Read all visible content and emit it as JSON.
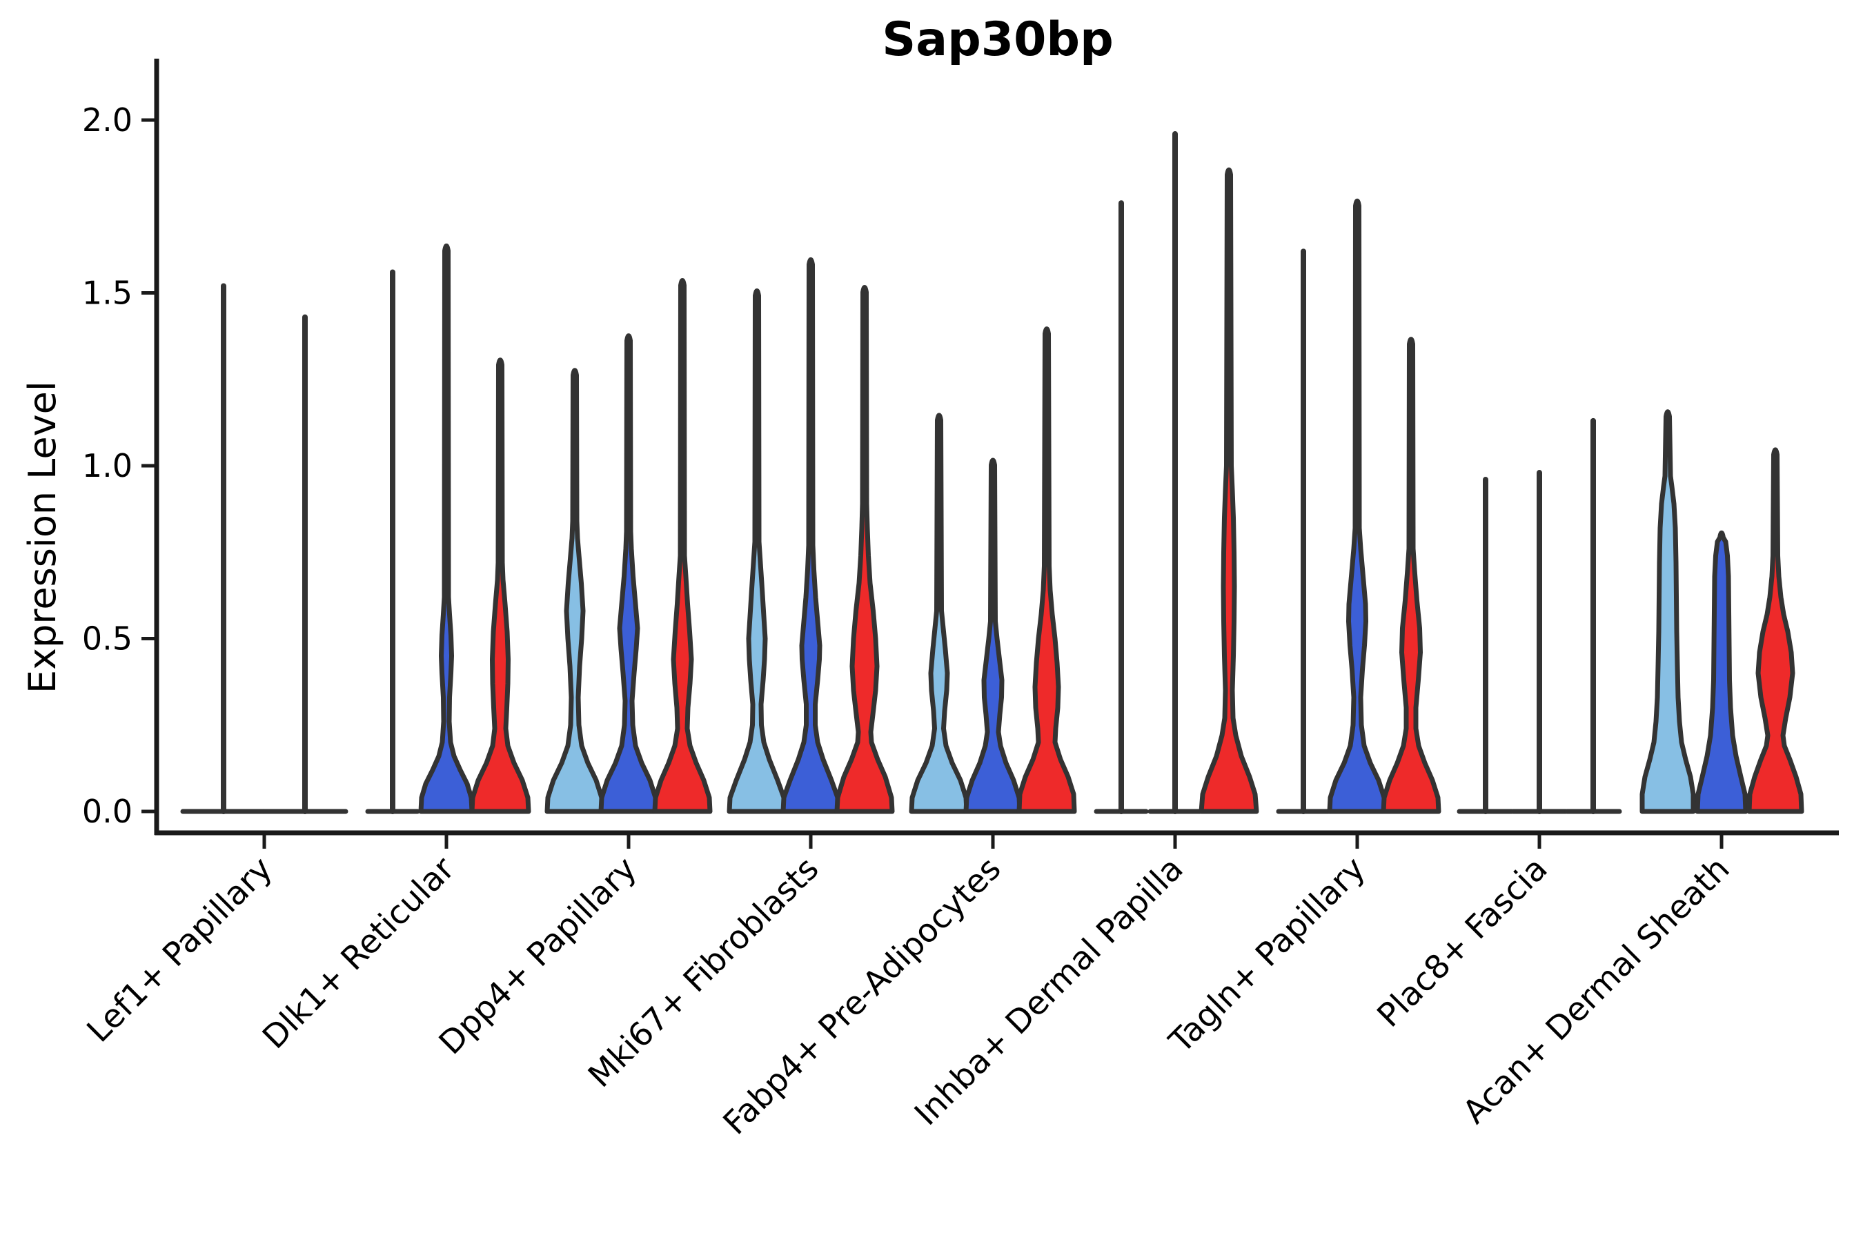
{
  "chart_data": {
    "type": "violin",
    "title": "Sap30bp",
    "ylabel": "Expression Level",
    "xlabel": "",
    "ylim": [
      0,
      2.05
    ],
    "yticks": [
      "0.0",
      "0.5",
      "1.0",
      "1.5",
      "2.0"
    ],
    "ytick_values": [
      0,
      0.5,
      1.0,
      1.5,
      2.0
    ],
    "grid": false,
    "legend": "none",
    "categories": [
      "Lef1+ Papillary",
      "Dlk1+ Reticular",
      "Dpp4+ Papillary",
      "Mki67+ Fibroblasts",
      "Fabp4+ Pre-Adipocytes",
      "Inhba+ Dermal Papilla",
      "Tagln+ Papillary",
      "Plac8+ Fascia",
      "Acan+ Dermal Sheath"
    ],
    "colors": {
      "skyblue": "#87BFE4",
      "blue": "#3C5FD7",
      "red": "#EE2A2A",
      "outline": "#333333"
    },
    "violins": [
      {
        "cat": 0,
        "dx": -59,
        "flat": true,
        "hw": 59,
        "max": 1.52
      },
      {
        "cat": 0,
        "dx": 59,
        "flat": true,
        "hw": 59,
        "max": 1.43
      },
      {
        "cat": 1,
        "dx": -78,
        "flat": true,
        "hw": 36,
        "max": 1.56
      },
      {
        "cat": 1,
        "dx": 0,
        "color": "blue",
        "max": 1.64,
        "profile": [
          [
            0,
            37
          ],
          [
            0.04,
            36
          ],
          [
            0.08,
            30
          ],
          [
            0.12,
            20
          ],
          [
            0.16,
            11
          ],
          [
            0.2,
            6
          ],
          [
            0.26,
            4
          ],
          [
            0.33,
            4.5
          ],
          [
            0.4,
            6.5
          ],
          [
            0.45,
            7.5
          ],
          [
            0.51,
            6.5
          ],
          [
            0.57,
            4.5
          ],
          [
            0.62,
            3
          ]
        ]
      },
      {
        "cat": 1,
        "dx": 78,
        "color": "red",
        "max": 1.31,
        "profile": [
          [
            0,
            41
          ],
          [
            0.04,
            40
          ],
          [
            0.09,
            32
          ],
          [
            0.14,
            20
          ],
          [
            0.19,
            11
          ],
          [
            0.24,
            8
          ],
          [
            0.3,
            9.5
          ],
          [
            0.37,
            11
          ],
          [
            0.44,
            11.5
          ],
          [
            0.52,
            10
          ],
          [
            0.6,
            7
          ],
          [
            0.67,
            4
          ],
          [
            0.72,
            3
          ]
        ]
      },
      {
        "cat": 2,
        "dx": -78,
        "color": "skyblue",
        "max": 1.28,
        "profile": [
          [
            0,
            40
          ],
          [
            0.04,
            39
          ],
          [
            0.09,
            31
          ],
          [
            0.14,
            19
          ],
          [
            0.19,
            10
          ],
          [
            0.25,
            6
          ],
          [
            0.33,
            5
          ],
          [
            0.42,
            7
          ],
          [
            0.5,
            10
          ],
          [
            0.58,
            12
          ],
          [
            0.66,
            9.5
          ],
          [
            0.73,
            6.5
          ],
          [
            0.79,
            4
          ],
          [
            0.84,
            3
          ]
        ]
      },
      {
        "cat": 2,
        "dx": 0,
        "color": "blue",
        "max": 1.38,
        "profile": [
          [
            0,
            40
          ],
          [
            0.04,
            39
          ],
          [
            0.09,
            31
          ],
          [
            0.14,
            19
          ],
          [
            0.19,
            10
          ],
          [
            0.25,
            6
          ],
          [
            0.32,
            5
          ],
          [
            0.4,
            8
          ],
          [
            0.47,
            11
          ],
          [
            0.53,
            13
          ],
          [
            0.6,
            10
          ],
          [
            0.68,
            6.5
          ],
          [
            0.76,
            4
          ],
          [
            0.81,
            3
          ]
        ]
      },
      {
        "cat": 2,
        "dx": 78,
        "color": "red",
        "max": 1.54,
        "profile": [
          [
            0,
            40
          ],
          [
            0.04,
            39
          ],
          [
            0.09,
            31
          ],
          [
            0.14,
            20
          ],
          [
            0.19,
            11
          ],
          [
            0.24,
            7
          ],
          [
            0.3,
            8
          ],
          [
            0.37,
            11
          ],
          [
            0.44,
            13
          ],
          [
            0.52,
            10.5
          ],
          [
            0.6,
            7.5
          ],
          [
            0.68,
            5
          ],
          [
            0.74,
            3
          ]
        ]
      },
      {
        "cat": 3,
        "dx": -78,
        "color": "skyblue",
        "max": 1.51,
        "profile": [
          [
            0,
            40
          ],
          [
            0.04,
            39
          ],
          [
            0.09,
            30
          ],
          [
            0.15,
            18
          ],
          [
            0.2,
            10
          ],
          [
            0.25,
            6.5
          ],
          [
            0.31,
            6
          ],
          [
            0.38,
            9
          ],
          [
            0.44,
            11
          ],
          [
            0.5,
            12
          ],
          [
            0.58,
            9.5
          ],
          [
            0.66,
            7
          ],
          [
            0.72,
            5
          ],
          [
            0.78,
            3
          ]
        ]
      },
      {
        "cat": 3,
        "dx": 0,
        "color": "blue",
        "max": 1.6,
        "profile": [
          [
            0,
            40
          ],
          [
            0.04,
            39
          ],
          [
            0.09,
            30
          ],
          [
            0.15,
            18
          ],
          [
            0.2,
            10
          ],
          [
            0.25,
            6.5
          ],
          [
            0.31,
            6.5
          ],
          [
            0.38,
            10
          ],
          [
            0.44,
            12.5
          ],
          [
            0.48,
            13
          ],
          [
            0.55,
            10
          ],
          [
            0.62,
            7
          ],
          [
            0.7,
            4.5
          ],
          [
            0.77,
            3
          ]
        ]
      },
      {
        "cat": 3,
        "dx": 78,
        "color": "red",
        "max": 1.52,
        "profile": [
          [
            0,
            40
          ],
          [
            0.04,
            39
          ],
          [
            0.1,
            30
          ],
          [
            0.15,
            19
          ],
          [
            0.2,
            10
          ],
          [
            0.23,
            9
          ],
          [
            0.28,
            12
          ],
          [
            0.35,
            16
          ],
          [
            0.42,
            18
          ],
          [
            0.5,
            16
          ],
          [
            0.58,
            12.5
          ],
          [
            0.66,
            8
          ],
          [
            0.74,
            5.5
          ],
          [
            0.82,
            4
          ],
          [
            0.89,
            3
          ]
        ]
      },
      {
        "cat": 4,
        "dx": -78,
        "color": "skyblue",
        "max": 1.15,
        "profile": [
          [
            0,
            40
          ],
          [
            0.04,
            39
          ],
          [
            0.09,
            31
          ],
          [
            0.14,
            19
          ],
          [
            0.19,
            10
          ],
          [
            0.24,
            6.5
          ],
          [
            0.29,
            8
          ],
          [
            0.35,
            11
          ],
          [
            0.4,
            12
          ],
          [
            0.47,
            9
          ],
          [
            0.53,
            6
          ],
          [
            0.58,
            3.5
          ]
        ]
      },
      {
        "cat": 4,
        "dx": 0,
        "color": "blue",
        "max": 1.02,
        "profile": [
          [
            0,
            39
          ],
          [
            0.04,
            38
          ],
          [
            0.09,
            30
          ],
          [
            0.14,
            19
          ],
          [
            0.19,
            11
          ],
          [
            0.23,
            8
          ],
          [
            0.28,
            10
          ],
          [
            0.33,
            12.5
          ],
          [
            0.38,
            13
          ],
          [
            0.44,
            9.5
          ],
          [
            0.5,
            6
          ],
          [
            0.55,
            3.5
          ]
        ]
      },
      {
        "cat": 4,
        "dx": 78,
        "color": "red",
        "max": 1.4,
        "profile": [
          [
            0,
            40
          ],
          [
            0.05,
            39
          ],
          [
            0.1,
            31
          ],
          [
            0.15,
            20
          ],
          [
            0.2,
            12
          ],
          [
            0.24,
            13
          ],
          [
            0.3,
            16
          ],
          [
            0.36,
            17
          ],
          [
            0.43,
            15
          ],
          [
            0.5,
            12
          ],
          [
            0.57,
            8
          ],
          [
            0.64,
            5
          ],
          [
            0.71,
            3.5
          ]
        ]
      },
      {
        "cat": 5,
        "dx": -78,
        "flat": true,
        "hw": 36,
        "max": 1.76
      },
      {
        "cat": 5,
        "dx": 0,
        "flat": true,
        "hw": 36,
        "max": 1.96
      },
      {
        "cat": 5,
        "dx": 78,
        "color": "red",
        "max": 1.86,
        "profile": [
          [
            0,
            40
          ],
          [
            0.05,
            38
          ],
          [
            0.1,
            30
          ],
          [
            0.16,
            18
          ],
          [
            0.22,
            10
          ],
          [
            0.27,
            6
          ],
          [
            0.35,
            5
          ],
          [
            0.45,
            6.5
          ],
          [
            0.55,
            7.5
          ],
          [
            0.65,
            8
          ],
          [
            0.75,
            7.5
          ],
          [
            0.85,
            6.5
          ],
          [
            0.93,
            5
          ],
          [
            1.0,
            3.5
          ]
        ]
      },
      {
        "cat": 6,
        "dx": -78,
        "flat": true,
        "hw": 36,
        "max": 1.62
      },
      {
        "cat": 6,
        "dx": 0,
        "color": "blue",
        "max": 1.77,
        "profile": [
          [
            0,
            40
          ],
          [
            0.04,
            39
          ],
          [
            0.09,
            31
          ],
          [
            0.14,
            19
          ],
          [
            0.19,
            10
          ],
          [
            0.25,
            6
          ],
          [
            0.33,
            5
          ],
          [
            0.41,
            7.5
          ],
          [
            0.48,
            10.5
          ],
          [
            0.55,
            12.5
          ],
          [
            0.6,
            12
          ],
          [
            0.68,
            8.5
          ],
          [
            0.76,
            5
          ],
          [
            0.82,
            3
          ]
        ]
      },
      {
        "cat": 6,
        "dx": 78,
        "color": "red",
        "max": 1.37,
        "profile": [
          [
            0,
            40
          ],
          [
            0.04,
            39
          ],
          [
            0.09,
            31
          ],
          [
            0.14,
            20
          ],
          [
            0.19,
            11
          ],
          [
            0.24,
            7
          ],
          [
            0.3,
            7
          ],
          [
            0.38,
            10.5
          ],
          [
            0.46,
            13.5
          ],
          [
            0.53,
            12.5
          ],
          [
            0.61,
            8.5
          ],
          [
            0.7,
            5
          ],
          [
            0.76,
            3
          ]
        ]
      },
      {
        "cat": 7,
        "dx": -78,
        "flat": true,
        "hw": 38,
        "max": 0.96
      },
      {
        "cat": 7,
        "dx": 0,
        "flat": true,
        "hw": 38,
        "max": 0.98
      },
      {
        "cat": 7,
        "dx": 78,
        "flat": true,
        "hw": 38,
        "max": 1.13
      },
      {
        "cat": 8,
        "dx": -78,
        "color": "skyblue",
        "max": 1.16,
        "profile": [
          [
            0,
            37
          ],
          [
            0.05,
            37
          ],
          [
            0.1,
            33
          ],
          [
            0.15,
            26
          ],
          [
            0.2,
            20
          ],
          [
            0.26,
            17
          ],
          [
            0.33,
            15
          ],
          [
            0.42,
            14
          ],
          [
            0.52,
            13
          ],
          [
            0.62,
            12.5
          ],
          [
            0.72,
            12
          ],
          [
            0.82,
            11
          ],
          [
            0.89,
            9
          ],
          [
            0.94,
            6
          ],
          [
            0.97,
            4
          ]
        ]
      },
      {
        "cat": 8,
        "dx": 0,
        "color": "blue",
        "max": 0.81,
        "profile": [
          [
            0,
            35
          ],
          [
            0.05,
            34
          ],
          [
            0.1,
            28
          ],
          [
            0.16,
            21
          ],
          [
            0.22,
            16
          ],
          [
            0.3,
            13
          ],
          [
            0.38,
            11.5
          ],
          [
            0.48,
            11
          ],
          [
            0.58,
            10.5
          ],
          [
            0.68,
            10
          ],
          [
            0.74,
            8.5
          ],
          [
            0.78,
            6
          ]
        ]
      },
      {
        "cat": 8,
        "dx": 78,
        "color": "red",
        "max": 1.05,
        "profile": [
          [
            0,
            38
          ],
          [
            0.05,
            37
          ],
          [
            0.1,
            30
          ],
          [
            0.15,
            21
          ],
          [
            0.19,
            13
          ],
          [
            0.22,
            11
          ],
          [
            0.27,
            15
          ],
          [
            0.33,
            21
          ],
          [
            0.4,
            25
          ],
          [
            0.46,
            23
          ],
          [
            0.52,
            18
          ],
          [
            0.57,
            12
          ],
          [
            0.62,
            8
          ],
          [
            0.68,
            5
          ],
          [
            0.74,
            3.5
          ]
        ]
      }
    ]
  }
}
